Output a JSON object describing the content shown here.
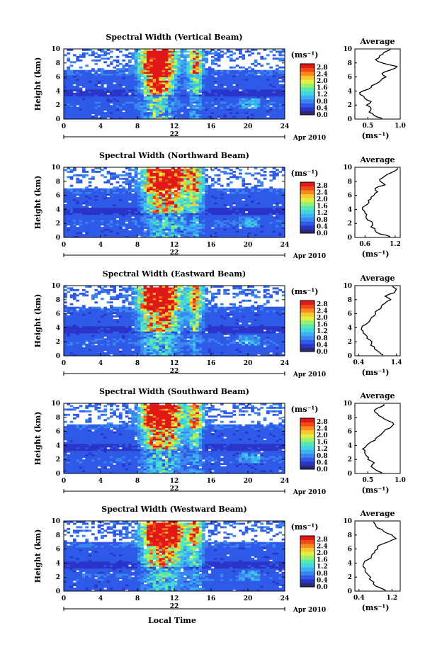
{
  "figure": {
    "date_label": "Apr 2010",
    "xlabel": "Local Time",
    "colorbar_unit": "(ms⁻¹)",
    "avg_title": "Average",
    "avg_xlabel": "(ms⁻¹)",
    "day_label": "22"
  },
  "chart_data": [
    {
      "type": "heatmap",
      "title": "Spectral Width (Vertical Beam)",
      "xlabel": "Local Time",
      "ylabel": "Height (km)",
      "xlim": [
        0,
        24
      ],
      "ylim": [
        0,
        10
      ],
      "xticks": [
        0,
        4,
        8,
        12,
        16,
        20,
        24
      ],
      "yticks": [
        0,
        2,
        4,
        6,
        8,
        10
      ],
      "colorbar": {
        "unit": "(ms⁻¹)",
        "ticks": [
          0.0,
          0.4,
          0.8,
          1.2,
          1.6,
          2.0,
          2.4,
          2.8
        ],
        "range": [
          0,
          3.0
        ]
      },
      "avg_profile": {
        "title": "Average",
        "xlabel": "(ms⁻¹)",
        "xlim": [
          0.3,
          1.0
        ],
        "xticks": [
          0.5,
          1.0
        ],
        "height": [
          0.1,
          0.5,
          1.0,
          1.5,
          2.0,
          2.5,
          3.0,
          3.5,
          4.0,
          4.5,
          5.0,
          5.5,
          6.0,
          6.5,
          7.0,
          7.5,
          8.0,
          8.5,
          9.0,
          9.5,
          9.9
        ],
        "value": [
          0.72,
          0.6,
          0.52,
          0.55,
          0.48,
          0.55,
          0.45,
          0.38,
          0.42,
          0.55,
          0.62,
          0.7,
          0.78,
          0.72,
          0.85,
          0.95,
          0.72,
          0.62,
          0.68,
          0.75,
          0.85
        ]
      }
    },
    {
      "type": "heatmap",
      "title": "Spectral Width (Northward Beam)",
      "xlabel": "Local Time",
      "ylabel": "Height (km)",
      "xlim": [
        0,
        24
      ],
      "ylim": [
        0,
        10
      ],
      "xticks": [
        0,
        4,
        8,
        12,
        16,
        20,
        24
      ],
      "yticks": [
        0,
        2,
        4,
        6,
        8,
        10
      ],
      "colorbar": {
        "unit": "(ms⁻¹)",
        "ticks": [
          0.0,
          0.4,
          0.8,
          1.2,
          1.6,
          2.0,
          2.4,
          2.8
        ],
        "range": [
          0,
          3.0
        ]
      },
      "avg_profile": {
        "title": "Average",
        "xlabel": "(ms⁻¹)",
        "xlim": [
          0.4,
          1.3
        ],
        "xticks": [
          0.6,
          1.2
        ],
        "height": [
          0.1,
          0.5,
          1.0,
          1.5,
          2.0,
          2.5,
          3.0,
          3.5,
          4.0,
          4.5,
          5.0,
          5.5,
          6.0,
          6.5,
          7.0,
          7.5,
          8.0,
          8.5,
          9.0,
          9.5,
          9.9
        ],
        "value": [
          1.1,
          0.9,
          0.8,
          0.72,
          0.75,
          0.65,
          0.62,
          0.6,
          0.55,
          0.6,
          0.68,
          0.72,
          0.78,
          0.85,
          0.8,
          1.0,
          0.9,
          0.95,
          1.05,
          1.2,
          1.25
        ]
      }
    },
    {
      "type": "heatmap",
      "title": "Spectral Width (Eastward Beam)",
      "xlabel": "Local Time",
      "ylabel": "Height (km)",
      "xlim": [
        0,
        24
      ],
      "ylim": [
        0,
        10
      ],
      "xticks": [
        0,
        4,
        8,
        12,
        16,
        20,
        24
      ],
      "yticks": [
        0,
        2,
        4,
        6,
        8,
        10
      ],
      "colorbar": {
        "unit": "(ms⁻¹)",
        "ticks": [
          0.0,
          0.4,
          0.8,
          1.2,
          1.6,
          2.0,
          2.4,
          2.8
        ],
        "range": [
          0,
          3.0
        ]
      },
      "avg_profile": {
        "title": "Average",
        "xlabel": "(ms⁻¹)",
        "xlim": [
          0.3,
          1.5
        ],
        "xticks": [
          0.4,
          1.4
        ],
        "height": [
          0.1,
          0.5,
          1.0,
          1.5,
          2.0,
          2.5,
          3.0,
          3.5,
          4.0,
          4.5,
          5.0,
          5.5,
          6.0,
          6.5,
          7.0,
          7.5,
          8.0,
          8.5,
          9.0,
          9.5,
          9.9
        ],
        "value": [
          1.05,
          0.95,
          0.82,
          0.72,
          0.75,
          0.62,
          0.58,
          0.52,
          0.48,
          0.6,
          0.7,
          0.75,
          0.85,
          0.9,
          1.0,
          1.1,
          1.25,
          1.1,
          1.35,
          1.4,
          1.3
        ]
      }
    },
    {
      "type": "heatmap",
      "title": "Spectral Width (Southward Beam)",
      "xlabel": "Local Time",
      "ylabel": "Height (km)",
      "xlim": [
        0,
        24
      ],
      "ylim": [
        0,
        10
      ],
      "xticks": [
        0,
        4,
        8,
        12,
        16,
        20,
        24
      ],
      "yticks": [
        0,
        2,
        4,
        6,
        8,
        10
      ],
      "colorbar": {
        "unit": "(ms⁻¹)",
        "ticks": [
          0.0,
          0.4,
          0.8,
          1.2,
          1.6,
          2.0,
          2.4,
          2.8
        ],
        "range": [
          0,
          3.0
        ]
      },
      "avg_profile": {
        "title": "Average",
        "xlabel": "(ms⁻¹)",
        "xlim": [
          0.3,
          1.0
        ],
        "xticks": [
          0.5,
          1.0
        ],
        "height": [
          0.1,
          0.5,
          1.0,
          1.5,
          2.0,
          2.5,
          3.0,
          3.5,
          4.0,
          4.5,
          5.0,
          5.5,
          6.0,
          6.5,
          7.0,
          7.5,
          8.0,
          8.5,
          9.0,
          9.5,
          9.9
        ],
        "value": [
          0.72,
          0.62,
          0.55,
          0.6,
          0.5,
          0.48,
          0.45,
          0.42,
          0.48,
          0.55,
          0.62,
          0.7,
          0.75,
          0.85,
          0.9,
          0.82,
          0.72,
          0.65,
          0.6,
          0.7,
          0.75
        ]
      }
    },
    {
      "type": "heatmap",
      "title": "Spectral Width (Westward Beam)",
      "xlabel": "Local Time",
      "ylabel": "Height (km)",
      "xlim": [
        0,
        24
      ],
      "ylim": [
        0,
        10
      ],
      "xticks": [
        0,
        4,
        8,
        12,
        16,
        20,
        24
      ],
      "yticks": [
        0,
        2,
        4,
        6,
        8,
        10
      ],
      "colorbar": {
        "unit": "(ms⁻¹)",
        "ticks": [
          0.0,
          0.4,
          0.8,
          1.2,
          1.6,
          2.0,
          2.4,
          2.8
        ],
        "range": [
          0,
          3.0
        ]
      },
      "avg_profile": {
        "title": "Average",
        "xlabel": "(ms⁻¹)",
        "xlim": [
          0.3,
          1.4
        ],
        "xticks": [
          0.4,
          1.2
        ],
        "height": [
          0.1,
          0.5,
          1.0,
          1.5,
          2.0,
          2.5,
          3.0,
          3.5,
          4.0,
          4.5,
          5.0,
          5.5,
          6.0,
          6.5,
          7.0,
          7.5,
          8.0,
          8.5,
          9.0,
          9.5,
          9.9
        ],
        "value": [
          1.05,
          0.9,
          0.75,
          0.7,
          0.68,
          0.6,
          0.55,
          0.5,
          0.52,
          0.62,
          0.7,
          0.78,
          0.85,
          0.88,
          1.1,
          1.3,
          1.2,
          1.0,
          0.85,
          0.8,
          0.75
        ]
      }
    }
  ],
  "colors": {
    "colormap": [
      "#2a2a70",
      "#2a35c8",
      "#2f5ae8",
      "#3a85f0",
      "#3db0f5",
      "#40d5e0",
      "#55e8b0",
      "#9af070",
      "#e0f040",
      "#f8c830",
      "#f88a20",
      "#f04a18",
      "#e01818"
    ]
  }
}
